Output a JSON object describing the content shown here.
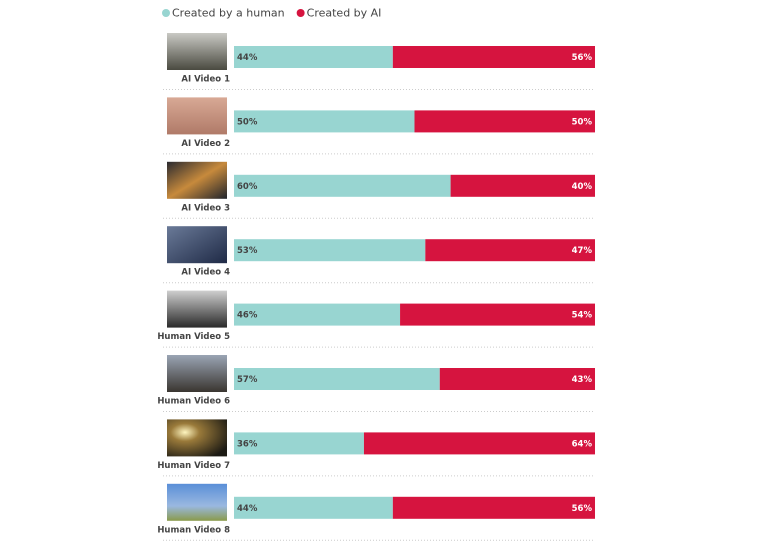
{
  "chart_data": {
    "type": "bar",
    "orientation": "horizontal",
    "stacked": true,
    "categories": [
      "AI Video 1",
      "AI Video 2",
      "AI Video 3",
      "AI Video 4",
      "Human Video 5",
      "Human Video 6",
      "Human Video 7",
      "Human Video 8"
    ],
    "series": [
      {
        "name": "Created by a human",
        "color": "#98d5d1",
        "values": [
          44,
          50,
          60,
          53,
          46,
          57,
          36,
          44
        ],
        "value_labels": [
          "44%",
          "50%",
          "60%",
          "53%",
          "46%",
          "57%",
          "36%",
          "44%"
        ]
      },
      {
        "name": "Created by AI",
        "color": "#d6143f",
        "values": [
          56,
          50,
          40,
          47,
          54,
          43,
          64,
          56
        ],
        "value_labels": [
          "56%",
          "50%",
          "40%",
          "47%",
          "54%",
          "43%",
          "64%",
          "56%"
        ]
      }
    ],
    "legend": "top"
  }
}
